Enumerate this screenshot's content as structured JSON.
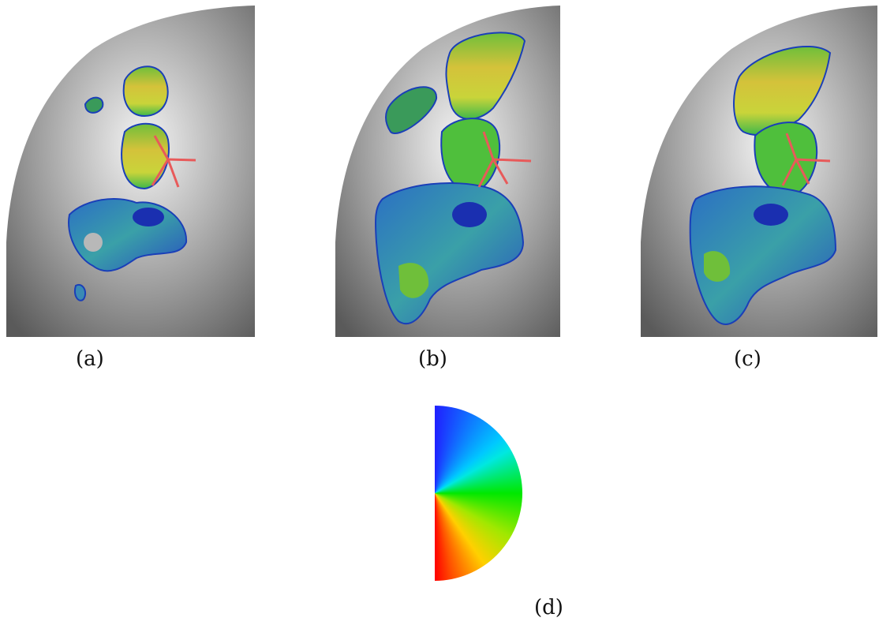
{
  "figure": {
    "panels": [
      {
        "id": "a",
        "label": "(a)"
      },
      {
        "id": "b",
        "label": "(b)"
      },
      {
        "id": "c",
        "label": "(c)"
      }
    ],
    "legend": {
      "label": "(d)"
    },
    "colors": {
      "marker": "#e85a5a",
      "surface_dark": "#4a4a4a",
      "surface_light": "#e8e8e8",
      "map_blue": "#1a3fb8",
      "map_green": "#4cbf3c",
      "map_yellow": "#d6c43a",
      "map_red": "#d24a2a"
    }
  }
}
